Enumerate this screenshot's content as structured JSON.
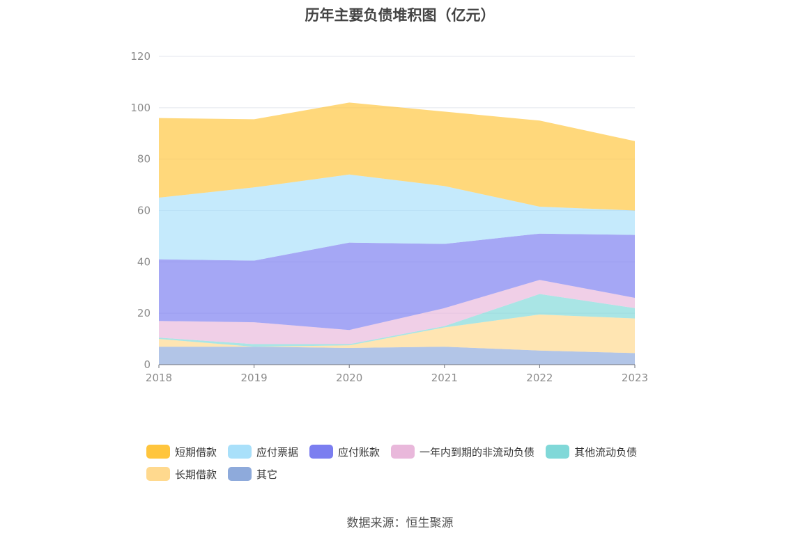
{
  "source_note": "数据来源：恒生聚源",
  "chart_data": {
    "type": "area",
    "stacked": true,
    "title": "历年主要负债堆积图（亿元）",
    "xlabel": "",
    "ylabel": "",
    "x": [
      "2018",
      "2019",
      "2020",
      "2021",
      "2022",
      "2023"
    ],
    "ylim": [
      0,
      120
    ],
    "yticks": [
      0,
      20,
      40,
      60,
      80,
      100,
      120
    ],
    "grid": true,
    "legend_position": "bottom",
    "series": [
      {
        "name": "其它",
        "color": "#8eaadb",
        "values": [
          7,
          7,
          6.5,
          7,
          5.5,
          4.5
        ]
      },
      {
        "name": "长期借款",
        "color": "#ffd98e",
        "values": [
          3,
          0,
          1,
          7.5,
          14,
          13.5
        ]
      },
      {
        "name": "其他流动负债",
        "color": "#80d8d8",
        "values": [
          0.5,
          1,
          0.5,
          0.5,
          8,
          4
        ]
      },
      {
        "name": "一年内到期的非流动负债",
        "color": "#e9b8db",
        "values": [
          6.5,
          8.5,
          5.5,
          7,
          5.5,
          4
        ]
      },
      {
        "name": "应付账款",
        "color": "#7b7ef0",
        "values": [
          24,
          24,
          34,
          25,
          18,
          24.5
        ]
      },
      {
        "name": "应付票据",
        "color": "#a9e0fa",
        "values": [
          24,
          28.5,
          26.5,
          22.5,
          10.5,
          9.5
        ]
      },
      {
        "name": "短期借款",
        "color": "#ffc53d",
        "values": [
          31,
          26.5,
          28,
          29,
          33.5,
          27
        ]
      }
    ],
    "legend_order": [
      "短期借款",
      "应付票据",
      "应付账款",
      "一年内到期的非流动负债",
      "其他流动负债",
      "长期借款",
      "其它"
    ]
  }
}
